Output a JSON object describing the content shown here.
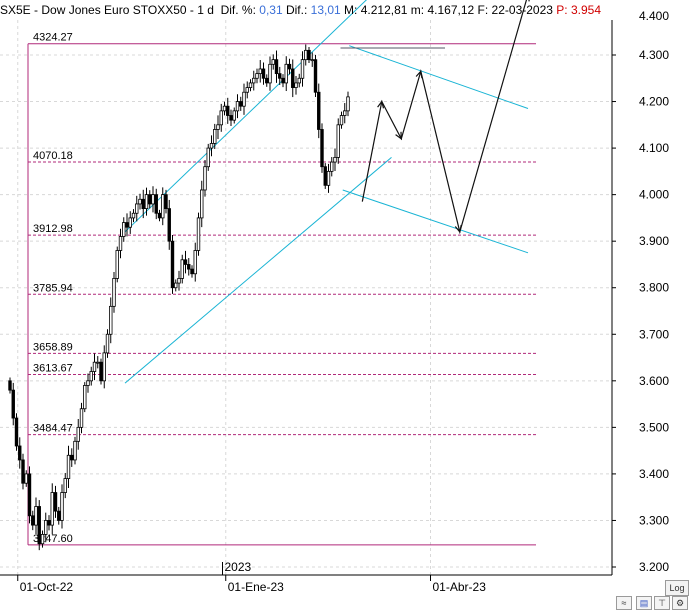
{
  "header": {
    "symbol": "SX5E",
    "sep1": " - ",
    "name": "Dow Jones Euro STOXX50",
    "sep2": " - ",
    "period": "1 d",
    "dif_pct_label": "Dif. %:",
    "dif_pct_value": "0,31",
    "dif_label": "Dif.:",
    "dif_value": "13,01",
    "max_label": "M:",
    "max_value": "4.212,81",
    "min_label": "m:",
    "min_value": "4.167,12",
    "date_label": "F:",
    "date_value": "22-03-2023",
    "price_label": "P:",
    "price_value": "3.954"
  },
  "buttons": {
    "log_label": "Log"
  },
  "colors": {
    "candle": "#000000",
    "channel": "#19b4d4",
    "level": "#b0297a",
    "grid": "#d8d8d8",
    "projection": "#111111"
  },
  "chart_data": {
    "type": "candlestick",
    "title": "Dow Jones Euro STOXX50",
    "ylim": [
      3200,
      4400
    ],
    "yticks": [
      3200,
      3300,
      3400,
      3500,
      3600,
      3700,
      3800,
      3900,
      4000,
      4100,
      4200,
      4300
    ],
    "ytick_labels": [
      "3.200",
      "3.300",
      "3.400",
      "3.500",
      "3.600",
      "3.700",
      "3.800",
      "3.900",
      "4.000",
      "4.100",
      "4.200",
      "4.300"
    ],
    "x_labels": [
      {
        "index": 3,
        "label": "01-Oct-22"
      },
      {
        "index": 67,
        "label": "01-Ene-23"
      },
      {
        "index": 130,
        "label": "01-Abr-23"
      }
    ],
    "year_label": {
      "index": 66,
      "label": "2023"
    },
    "levels": [
      {
        "value": 4324.27,
        "label": "4324.27"
      },
      {
        "value": 4070.18,
        "label": "4070.18"
      },
      {
        "value": 3912.98,
        "label": "3912.98"
      },
      {
        "value": 3785.94,
        "label": "3785.94"
      },
      {
        "value": 3658.89,
        "label": "3658.89"
      },
      {
        "value": 3613.67,
        "label": "3613.67"
      },
      {
        "value": 3484.47,
        "label": "3484.47"
      },
      {
        "value": 3247.6,
        "label": "3247.60"
      }
    ],
    "closes": [
      3580,
      3520,
      3460,
      3430,
      3380,
      3400,
      3310,
      3290,
      3330,
      3250,
      3270,
      3300,
      3290,
      3360,
      3320,
      3300,
      3360,
      3390,
      3440,
      3430,
      3470,
      3500,
      3540,
      3590,
      3600,
      3620,
      3640,
      3640,
      3600,
      3660,
      3700,
      3760,
      3820,
      3880,
      3910,
      3940,
      3930,
      3950,
      3960,
      3980,
      3990,
      3970,
      4000,
      3980,
      4000,
      3960,
      3950,
      4000,
      3970,
      3900,
      3800,
      3810,
      3820,
      3860,
      3850,
      3840,
      3830,
      3880,
      3950,
      4010,
      4060,
      4100,
      4110,
      4140,
      4150,
      4180,
      4190,
      4170,
      4160,
      4180,
      4200,
      4190,
      4220,
      4230,
      4240,
      4250,
      4260,
      4270,
      4250,
      4240,
      4280,
      4290,
      4260,
      4250,
      4240,
      4280,
      4270,
      4230,
      4240,
      4250,
      4290,
      4310,
      4290,
      4290,
      4220,
      4140,
      4060,
      4020,
      4050,
      4070,
      4080,
      4150,
      4170,
      4180,
      4210
    ],
    "channels": [
      {
        "x0": 36,
        "y0": 3920,
        "x1": 112,
        "y1": 4430
      },
      {
        "x0": 36,
        "y0": 3595,
        "x1": 118,
        "y1": 4080
      },
      {
        "x0": 105,
        "y0": 4320,
        "x1": 160,
        "y1": 4185
      },
      {
        "x0": 103,
        "y0": 4010,
        "x1": 160,
        "y1": 3875
      }
    ],
    "resistance_segment": {
      "x0": 90,
      "x1": 132,
      "y": 4315
    },
    "projection": [
      {
        "x": 109,
        "y": 3985
      },
      {
        "x": 115,
        "y": 4200
      },
      {
        "x": 121,
        "y": 4120
      },
      {
        "x": 127,
        "y": 4265
      },
      {
        "x": 139,
        "y": 3920
      },
      {
        "x": 160,
        "y": 4430
      }
    ]
  }
}
